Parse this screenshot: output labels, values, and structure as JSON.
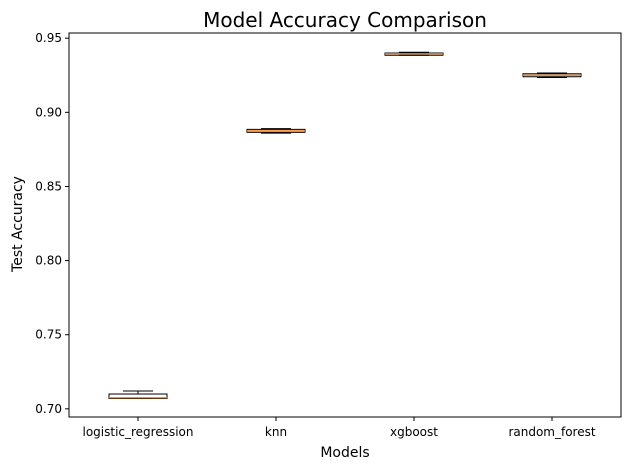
{
  "chart_data": {
    "type": "box",
    "title": "Model Accuracy Comparison",
    "xlabel": "Models",
    "ylabel": "Test Accuracy",
    "ylim": [
      0.6945,
      0.9535
    ],
    "yticks": [
      0.7,
      0.75,
      0.8,
      0.85,
      0.9,
      0.95
    ],
    "ytick_labels": [
      "0.70",
      "0.75",
      "0.80",
      "0.85",
      "0.90",
      "0.95"
    ],
    "categories": [
      "logistic_regression",
      "knn",
      "xgboost",
      "random_forest"
    ],
    "boxes": [
      {
        "min": 0.707,
        "q1": 0.707,
        "median": 0.7075,
        "q3": 0.71,
        "max": 0.712
      },
      {
        "min": 0.886,
        "q1": 0.8865,
        "median": 0.8875,
        "q3": 0.8885,
        "max": 0.889
      },
      {
        "min": 0.9385,
        "q1": 0.9385,
        "median": 0.9395,
        "q3": 0.94,
        "max": 0.9405
      },
      {
        "min": 0.9235,
        "q1": 0.924,
        "median": 0.925,
        "q3": 0.926,
        "max": 0.9265
      }
    ],
    "box_color": "#000000",
    "median_color": "#ff7f0e",
    "grid": false,
    "legend": "none"
  }
}
